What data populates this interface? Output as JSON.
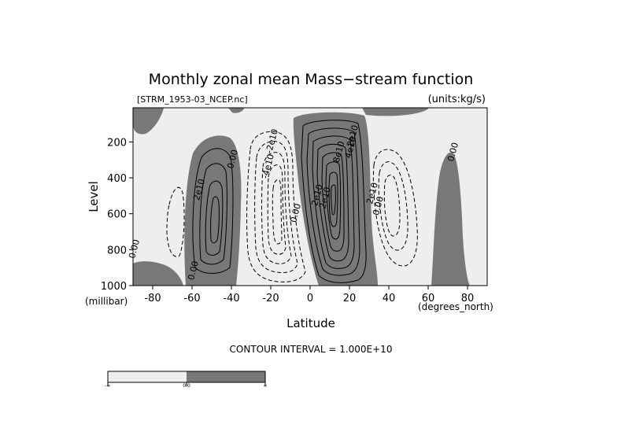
{
  "chart_data": {
    "type": "contour",
    "title": "Monthly zonal mean Mass−stream function",
    "subtitle_left": "[STRM_1953-03_NCEP.nc]",
    "subtitle_right": "(units:kg/s)",
    "xlabel": "Latitude",
    "x_unit": "(degrees_north)",
    "ylabel": "Level",
    "y_unit": "(millibar)",
    "x_ticks": [
      -80,
      -60,
      -40,
      -20,
      0,
      20,
      40,
      60,
      80
    ],
    "y_ticks": [
      200,
      400,
      600,
      800,
      1000
    ],
    "xlim": [
      -90,
      90
    ],
    "ylim": [
      1000,
      10
    ],
    "y_reversed": true,
    "contour_interval": 10000000000,
    "contour_interval_text": "CONTOUR INTERVAL = 1.000E+10",
    "contour_labels": [
      {
        "text": "2e10",
        "lat": -55,
        "lev": 470
      },
      {
        "text": "0.00",
        "lat": -38,
        "lev": 300
      },
      {
        "text": "-2e10",
        "lat": -18,
        "lev": 200
      },
      {
        "text": "-4e10",
        "lat": -20,
        "lev": 340
      },
      {
        "text": "0.00",
        "lat": -6,
        "lev": 600
      },
      {
        "text": "2e10",
        "lat": 5,
        "lev": 500
      },
      {
        "text": "2e10",
        "lat": 9,
        "lev": 515
      },
      {
        "text": "2e10",
        "lat": 23,
        "lev": 170
      },
      {
        "text": "4e10",
        "lat": 22,
        "lev": 235
      },
      {
        "text": "8e10",
        "lat": 16,
        "lev": 260
      },
      {
        "text": "2e10",
        "lat": 33,
        "lev": 490
      },
      {
        "text": "0.00",
        "lat": 36,
        "lev": 560
      },
      {
        "text": "0.00",
        "lat": 74,
        "lev": 260
      },
      {
        "text": "0.00",
        "lat": -88,
        "lev": 800
      },
      {
        "text": "0.00",
        "lat": -58,
        "lev": 920
      }
    ],
    "colorbar": {
      "ticks": [
        "-∞",
        "0.0",
        "∞"
      ],
      "colors": [
        "#eeeeee",
        "#787878"
      ]
    },
    "colors": {
      "positive_fill": "#787878",
      "negative_fill": "#eeeeee",
      "line": "#000000"
    }
  }
}
